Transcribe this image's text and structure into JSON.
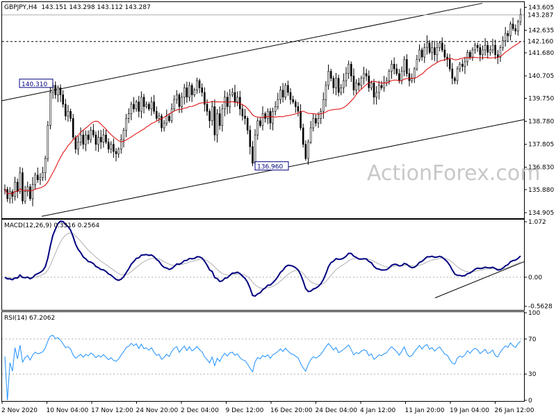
{
  "chart_data": [
    {
      "type": "candlestick",
      "title": "GBPJPY,H4",
      "ohlc_header": "143.151 143.298 143.112 143.287",
      "ylim": [
        134.7,
        143.8
      ],
      "yticks": [
        "143.605",
        "142.635",
        "141.680",
        "140.705",
        "139.750",
        "138.780",
        "137.805",
        "136.830",
        "135.880",
        "134.905"
      ],
      "last_price": "143.287",
      "support_label": "142.160",
      "annotations": [
        "140.310",
        "136.960"
      ],
      "colors": {
        "candle": "#000000",
        "ma": "#e00000",
        "channel": "#000000"
      },
      "series": [
        {
          "values_close": [
            135.9,
            135.5,
            135.8,
            135.6,
            136.2,
            135.8,
            136.6,
            135.4,
            135.8,
            136.0,
            135.5,
            136.1,
            136.5,
            136.3,
            136.4,
            136.6,
            137.2,
            138.6,
            140.0,
            140.3,
            139.9,
            140.2,
            139.9,
            139.5,
            139.0,
            139.2,
            138.9,
            138.1,
            137.6,
            137.9,
            138.2,
            137.8,
            138.2,
            138.0,
            138.4,
            138.2,
            137.8,
            138.1,
            137.9,
            138.2,
            137.9,
            137.6,
            137.8,
            137.5,
            137.4,
            137.6,
            138.0,
            138.4,
            138.9,
            139.1,
            139.5,
            139.3,
            139.6,
            139.2,
            139.8,
            139.4,
            139.5,
            139.3,
            139.6,
            139.2,
            138.9,
            139.0,
            138.5,
            138.7,
            139.0,
            138.8,
            139.3,
            139.7,
            139.9,
            139.4,
            139.8,
            140.2,
            139.8,
            140.3,
            139.9,
            140.1,
            140.5,
            140.2,
            140.0,
            139.5,
            139.2,
            138.8,
            139.4,
            138.2,
            139.1,
            138.6,
            139.3,
            139.8,
            139.4,
            139.9,
            140.0,
            139.6,
            139.8,
            139.3,
            139.0,
            138.9,
            138.4,
            137.7,
            137.0,
            138.2,
            138.8,
            138.6,
            139.1,
            138.9,
            139.2,
            138.7,
            139.2,
            139.4,
            139.7,
            140.1,
            139.8,
            140.3,
            140.0,
            139.7,
            139.6,
            139.4,
            139.2,
            138.5,
            137.8,
            137.2,
            137.9,
            138.5,
            138.9,
            138.7,
            138.9,
            139.2,
            139.7,
            140.3,
            140.9,
            140.6,
            140.2,
            140.6,
            140.0,
            140.2,
            140.5,
            140.8,
            141.2,
            140.7,
            140.1,
            140.4,
            140.3,
            140.6,
            140.8,
            140.7,
            140.2,
            140.4,
            139.8,
            140.0,
            140.3,
            140.2,
            140.4,
            140.5,
            140.9,
            141.2,
            141.0,
            140.8,
            140.5,
            140.9,
            141.4,
            140.8,
            140.5,
            140.6,
            141.0,
            141.4,
            141.8,
            141.5,
            141.9,
            142.1,
            141.7,
            141.9,
            141.6,
            141.9,
            142.1,
            141.8,
            141.5,
            141.4,
            141.0,
            140.6,
            140.5,
            141.0,
            141.2,
            141.1,
            141.3,
            141.7,
            141.5,
            141.8,
            142.0,
            141.9,
            141.6,
            141.8,
            142.0,
            141.7,
            141.8,
            142.0,
            141.6,
            141.5,
            141.9,
            142.2,
            142.5,
            142.4,
            142.9,
            142.7,
            142.6,
            143.0,
            143.3
          ]
        }
      ]
    },
    {
      "type": "line",
      "title": "MACD(12,26,9) 0.3316 0.2564",
      "ylim": [
        -0.62,
        1.1
      ],
      "yticks": [
        "1.072",
        "0.00",
        "-0.5628"
      ],
      "colors": {
        "main": "#000080",
        "signal": "#b0b0b0"
      }
    },
    {
      "type": "line",
      "title": "RSI(14) 67.2062",
      "ylim": [
        0,
        100
      ],
      "yticks": [
        "100",
        "70",
        "30",
        "0"
      ],
      "colors": {
        "main": "#1e90ff"
      }
    }
  ],
  "x_tick_labels": [
    "2 Nov 2020",
    "10 Nov 04:00",
    "17 Nov 12:00",
    "24 Nov 20:00",
    "2 Dec 04:00",
    "9 Dec 12:00",
    "16 Dec 20:00",
    "24 Dec 04:00",
    "4 Jan 12:00",
    "11 Jan 20:00",
    "19 Jan 04:00",
    "26 Jan 12:00"
  ],
  "watermark": "ActionForex.com"
}
